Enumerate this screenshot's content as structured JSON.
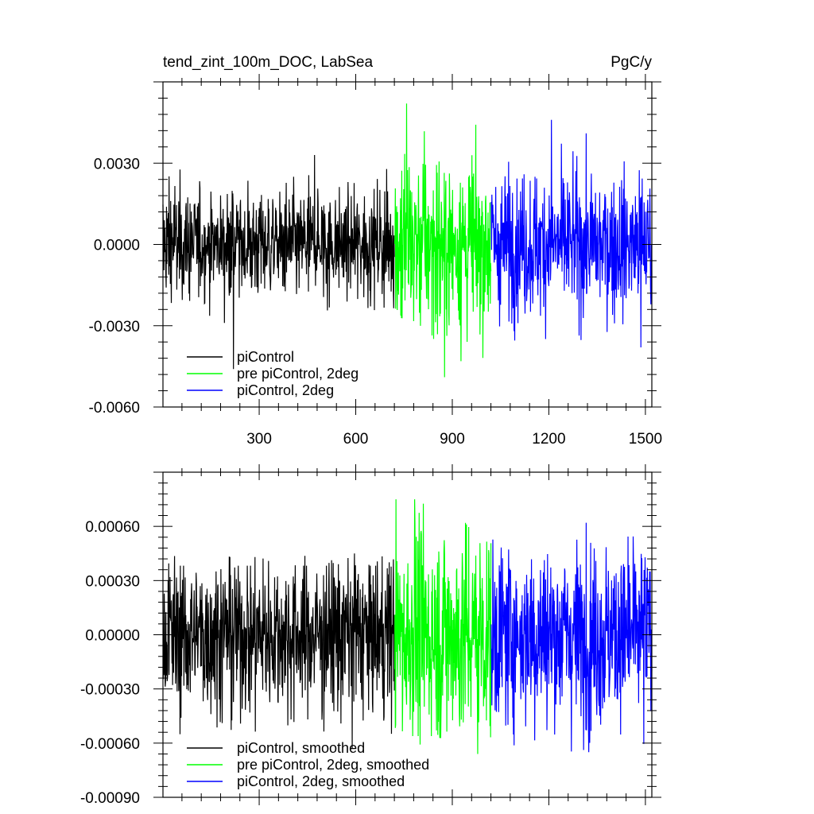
{
  "figure": {
    "title_left": "tend_zint_100m_DOC, LabSea",
    "title_right": "PgC/y"
  },
  "chart_data": [
    {
      "type": "line",
      "title": "tend_zint_100m_DOC, LabSea",
      "units": "PgC/y",
      "xlim": [
        1,
        1520
      ],
      "ylim": [
        -0.006,
        0.006
      ],
      "x_ticks": [
        300,
        600,
        900,
        1200,
        1500
      ],
      "x_tick_labels": [
        "300",
        "600",
        "900",
        "1200",
        "1500"
      ],
      "y_ticks": [
        -0.006,
        -0.003,
        0.0,
        0.003
      ],
      "y_tick_labels": [
        "-0.0060",
        "-0.0030",
        "0.0000",
        "0.0030"
      ],
      "grid": false,
      "legend_position": "bottom-left",
      "series": [
        {
          "name": "piControl",
          "color": "#000000",
          "x_range": [
            1,
            720
          ],
          "mean": 0.0,
          "stdev": 0.001,
          "max": 0.0033,
          "min": -0.0046
        },
        {
          "name": "pre piControl, 2deg",
          "color": "#00ff00",
          "x_range": [
            721,
            1020
          ],
          "mean": 0.0,
          "stdev": 0.0016,
          "max": 0.0052,
          "min": -0.0049
        },
        {
          "name": "piControl, 2deg",
          "color": "#0000ff",
          "x_range": [
            1021,
            1520
          ],
          "mean": 0.0,
          "stdev": 0.0013,
          "max": 0.0046,
          "min": -0.0038
        }
      ]
    },
    {
      "type": "line",
      "xlim": [
        1,
        1520
      ],
      "ylim": [
        -0.0009,
        0.0009
      ],
      "x_ticks": [
        300,
        600,
        900,
        1200,
        1500
      ],
      "x_tick_labels": [],
      "y_ticks": [
        -0.0009,
        -0.0006,
        -0.0003,
        0.0,
        0.0003,
        0.0006
      ],
      "y_tick_labels": [
        "-0.00090",
        "-0.00060",
        "-0.00030",
        "0.00000",
        "0.00030",
        "0.00060"
      ],
      "grid": false,
      "legend_position": "bottom-left",
      "series": [
        {
          "name": "piControl, smoothed",
          "color": "#000000",
          "x_range": [
            1,
            720
          ],
          "mean": 0.0,
          "stdev": 0.00022,
          "max": 0.00045,
          "min": -0.00063
        },
        {
          "name": "pre piControl, 2deg, smoothed",
          "color": "#00ff00",
          "x_range": [
            721,
            1020
          ],
          "mean": 0.0,
          "stdev": 0.0003,
          "max": 0.00075,
          "min": -0.00066
        },
        {
          "name": "piControl, 2deg, smoothed",
          "color": "#0000ff",
          "x_range": [
            1021,
            1520
          ],
          "mean": 0.0,
          "stdev": 0.00025,
          "max": 0.00062,
          "min": -0.00065
        }
      ]
    }
  ]
}
